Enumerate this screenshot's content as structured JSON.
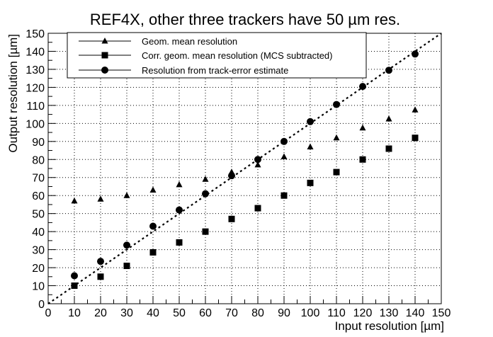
{
  "chart_data": {
    "type": "scatter",
    "title": "REF4X, other three trackers have 50 µm res.",
    "xlabel": "Input resolution [µm]",
    "ylabel": "Output resolution [µm]",
    "xlim": [
      0,
      150
    ],
    "ylim": [
      0,
      150
    ],
    "x_ticks": [
      0,
      10,
      20,
      30,
      40,
      50,
      60,
      70,
      80,
      90,
      100,
      110,
      120,
      130,
      140,
      150
    ],
    "y_ticks": [
      0,
      10,
      20,
      30,
      40,
      50,
      60,
      70,
      80,
      90,
      100,
      110,
      120,
      130,
      140,
      150
    ],
    "grid": true,
    "legend_position": "top-left",
    "x": [
      10,
      20,
      30,
      40,
      50,
      60,
      70,
      80,
      90,
      100,
      110,
      120,
      130,
      140
    ],
    "series": [
      {
        "name": "Geom. mean resolution",
        "marker": "triangle",
        "values": [
          57,
          58,
          60,
          63,
          66,
          69,
          73,
          77,
          81.5,
          87,
          92,
          97.5,
          102.5,
          107.5
        ]
      },
      {
        "name": "Corr. geom. mean resolution (MCS subtracted)",
        "marker": "square",
        "values": [
          10,
          15,
          21,
          28.5,
          34,
          40,
          47,
          53,
          60,
          67,
          73,
          80,
          86,
          92
        ]
      },
      {
        "name": "Resolution from track-error estimate",
        "marker": "circle",
        "values": [
          15.5,
          23.5,
          32.5,
          43,
          52,
          61,
          71,
          80,
          90,
          101,
          110.5,
          120.5,
          129.5,
          138.5
        ]
      }
    ],
    "reference_line": {
      "style": "dotted",
      "from": [
        0,
        0
      ],
      "to": [
        150,
        150
      ]
    }
  }
}
